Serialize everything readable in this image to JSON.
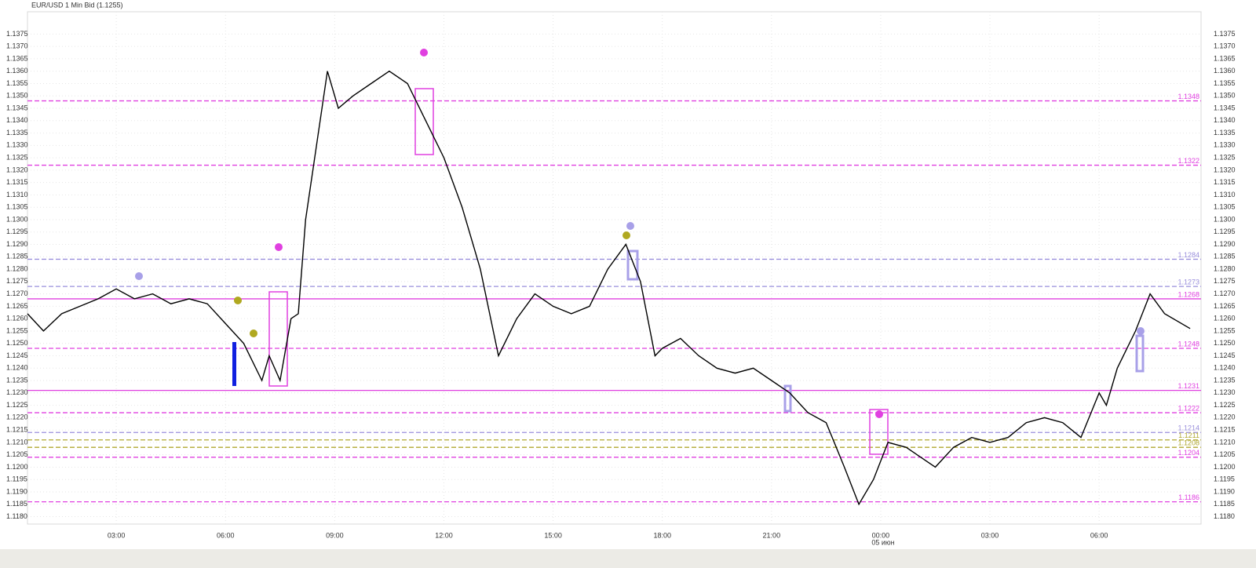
{
  "chart_data": {
    "type": "line",
    "title": "EUR/USD 1 Min Bid (1.1255)",
    "date_label": "05 июн",
    "xlim": [
      0.56,
      32.8
    ],
    "ylim": [
      1.1177,
      1.1384
    ],
    "grid": true,
    "xticks": [
      {
        "value": 3,
        "label": "03:00"
      },
      {
        "value": 6,
        "label": "06:00"
      },
      {
        "value": 9,
        "label": "09:00"
      },
      {
        "value": 12,
        "label": "12:00"
      },
      {
        "value": 15,
        "label": "15:00"
      },
      {
        "value": 18,
        "label": "18:00"
      },
      {
        "value": 21,
        "label": "21:00"
      },
      {
        "value": 24,
        "label": "00:00"
      },
      {
        "value": 27,
        "label": "03:00"
      },
      {
        "value": 30,
        "label": "06:00"
      }
    ],
    "yticks": [
      {
        "value": 1.118,
        "label": "1.1180"
      },
      1.1185,
      {
        "value": 1.119,
        "label": "1.1190"
      },
      1.1195,
      {
        "value": 1.12,
        "label": "1.1200"
      },
      1.1205,
      {
        "value": 1.121,
        "label": "1.1210"
      },
      1.1215,
      {
        "value": 1.122,
        "label": "1.1220"
      },
      1.1225,
      {
        "value": 1.123,
        "label": "1.1230"
      },
      1.1235,
      {
        "value": 1.124,
        "label": "1.1240"
      },
      1.1245,
      {
        "value": 1.125,
        "label": "1.1250"
      },
      1.1255,
      {
        "value": 1.126,
        "label": "1.1260"
      },
      1.1265,
      {
        "value": 1.127,
        "label": "1.1270"
      },
      1.1275,
      {
        "value": 1.128,
        "label": "1.1280"
      },
      1.1285,
      {
        "value": 1.129,
        "label": "1.1290"
      },
      1.1295,
      {
        "value": 1.13,
        "label": "1.1300"
      },
      1.1305,
      {
        "value": 1.131,
        "label": "1.1310"
      },
      1.1315,
      {
        "value": 1.132,
        "label": "1.1320"
      },
      1.1325,
      {
        "value": 1.133,
        "label": "1.1330"
      },
      1.1335,
      {
        "value": 1.134,
        "label": "1.1340"
      },
      1.1345,
      {
        "value": 1.135,
        "label": "1.1350"
      },
      1.1355,
      {
        "value": 1.136,
        "label": "1.1360"
      },
      1.1365,
      {
        "value": 1.137,
        "label": "1.1370"
      },
      1.1375
    ],
    "levels": [
      {
        "value": 1.1348,
        "color": "#e040e0",
        "dash": true
      },
      {
        "value": 1.1322,
        "color": "#e040e0",
        "dash": true
      },
      {
        "value": 1.1284,
        "color": "#9a8fdc",
        "dash": true
      },
      {
        "value": 1.1273,
        "color": "#9a8fdc",
        "dash": true
      },
      {
        "value": 1.1268,
        "color": "#e040e0",
        "dash": false
      },
      {
        "value": 1.1248,
        "color": "#e040e0",
        "dash": true
      },
      {
        "value": 1.1231,
        "color": "#e040e0",
        "dash": false
      },
      {
        "value": 1.1222,
        "color": "#e040e0",
        "dash": true
      },
      {
        "value": 1.1214,
        "color": "#9a8fdc",
        "dash": true
      },
      {
        "value": 1.1211,
        "color": "#b0a830",
        "dash": true
      },
      {
        "value": 1.1208,
        "color": "#b0a830",
        "dash": true
      },
      {
        "value": 1.1204,
        "color": "#e040e0",
        "dash": true
      },
      {
        "value": 1.1186,
        "color": "#e040e0",
        "dash": true
      }
    ],
    "series": [
      {
        "name": "EUR/USD",
        "color": "#000000",
        "x": [
          0.56,
          1,
          1.5,
          2,
          2.5,
          3,
          3.5,
          4,
          4.5,
          5,
          5.5,
          6,
          6.5,
          7,
          7.2,
          7.5,
          7.8,
          8,
          8.2,
          8.5,
          8.8,
          9.1,
          9.5,
          10,
          10.5,
          11,
          11.5,
          12,
          12.5,
          13,
          13.5,
          14,
          14.5,
          15,
          15.5,
          16,
          16.5,
          17,
          17.4,
          17.8,
          18,
          18.5,
          19,
          19.5,
          20,
          20.5,
          21,
          21.5,
          22,
          22.5,
          23,
          23.4,
          23.8,
          24.2,
          24.7,
          25,
          25.5,
          26,
          26.5,
          27,
          27.5,
          28,
          28.5,
          29,
          29.5,
          30,
          30.2,
          30.5,
          31,
          31.4,
          31.8,
          32.5
        ],
        "values": [
          1.1262,
          1.1255,
          1.1262,
          1.1265,
          1.1268,
          1.1272,
          1.1268,
          1.127,
          1.1266,
          1.1268,
          1.1266,
          1.1258,
          1.125,
          1.1235,
          1.1245,
          1.1235,
          1.126,
          1.1262,
          1.13,
          1.133,
          1.136,
          1.1345,
          1.135,
          1.1355,
          1.136,
          1.1355,
          1.134,
          1.1325,
          1.1305,
          1.128,
          1.1245,
          1.126,
          1.127,
          1.1265,
          1.1262,
          1.1265,
          1.128,
          1.129,
          1.1275,
          1.1245,
          1.1248,
          1.1252,
          1.1245,
          1.124,
          1.1238,
          1.124,
          1.1235,
          1.123,
          1.1222,
          1.1218,
          1.12,
          1.1185,
          1.1195,
          1.121,
          1.1208,
          1.1205,
          1.12,
          1.1208,
          1.1212,
          1.121,
          1.1212,
          1.1218,
          1.122,
          1.1218,
          1.1212,
          1.123,
          1.1225,
          1.124,
          1.1255,
          1.127,
          1.1262,
          1.1256
        ]
      }
    ]
  }
}
